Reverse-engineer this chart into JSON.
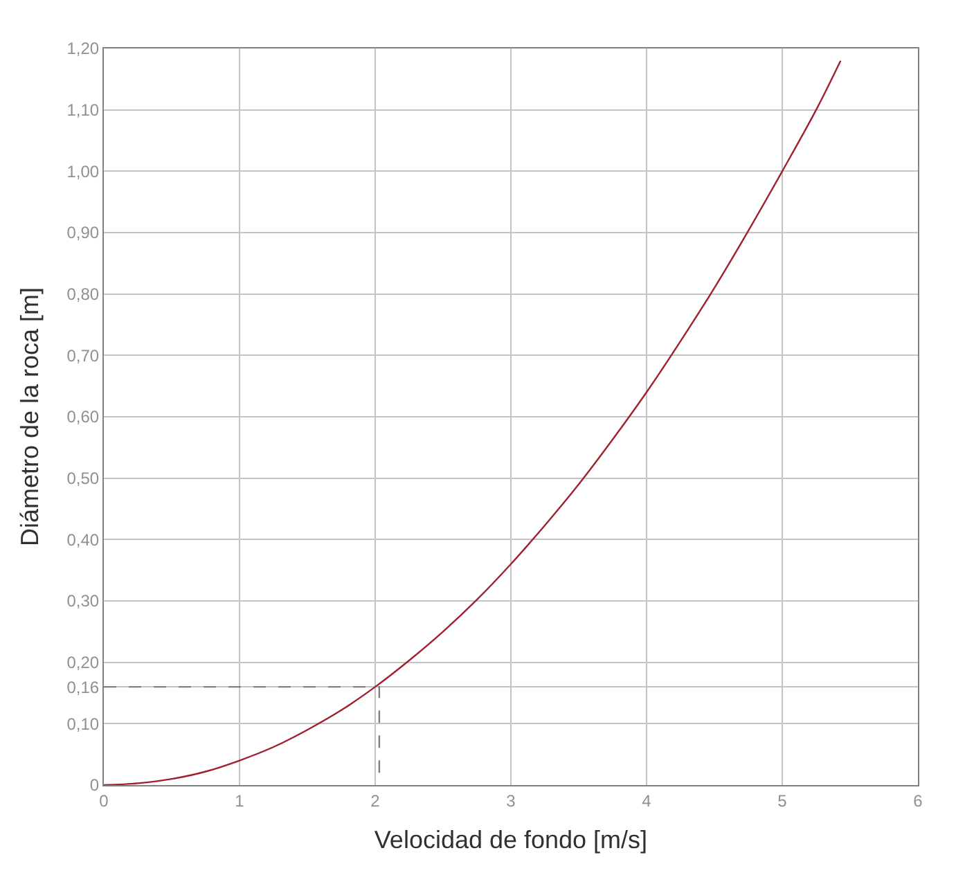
{
  "chart_data": {
    "type": "line",
    "xlabel": "Velocidad de fondo [m/s]",
    "ylabel": "Diámetro de la roca [m]",
    "xlim": [
      0,
      6
    ],
    "xticks": [
      0,
      1,
      2,
      3,
      4,
      5,
      6
    ],
    "ylim": [
      0,
      1.2
    ],
    "yticks": [
      {
        "value": 0,
        "label": "0"
      },
      {
        "value": 0.1,
        "label": "0,10"
      },
      {
        "value": 0.16,
        "label": "0,16"
      },
      {
        "value": 0.2,
        "label": "0,20"
      },
      {
        "value": 0.3,
        "label": "0,30"
      },
      {
        "value": 0.4,
        "label": "0,40"
      },
      {
        "value": 0.5,
        "label": "0,50"
      },
      {
        "value": 0.6,
        "label": "0,60"
      },
      {
        "value": 0.7,
        "label": "0,70"
      },
      {
        "value": 0.8,
        "label": "0,80"
      },
      {
        "value": 0.9,
        "label": "0,90"
      },
      {
        "value": 1.0,
        "label": "1,00"
      },
      {
        "value": 1.1,
        "label": "1,10"
      },
      {
        "value": 1.2,
        "label": "1,20"
      }
    ],
    "grid": true,
    "marker": "none",
    "series": [
      {
        "color": "#a02030",
        "line_style": "solid",
        "x": [
          0,
          0.25,
          0.5,
          0.75,
          1,
          1.25,
          1.5,
          1.75,
          2,
          2.25,
          2.5,
          2.75,
          3,
          3.25,
          3.5,
          3.75,
          4,
          4.25,
          4.5,
          4.75,
          5,
          5.25,
          5.43
        ],
        "values": [
          0,
          0.003,
          0.01,
          0.022,
          0.04,
          0.062,
          0.09,
          0.122,
          0.16,
          0.203,
          0.25,
          0.302,
          0.36,
          0.423,
          0.49,
          0.563,
          0.64,
          0.723,
          0.81,
          0.903,
          1.0,
          1.1,
          1.18
        ]
      },
      {
        "color": "#808080",
        "line_style": "dashed",
        "x": [
          0,
          2.03,
          2.03
        ],
        "values": [
          0.16,
          0.16,
          0
        ]
      }
    ]
  }
}
